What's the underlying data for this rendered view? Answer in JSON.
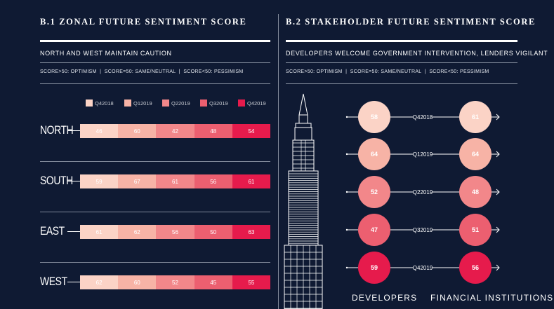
{
  "colors": {
    "background": "#0f1a33",
    "q4_2018": "#fbd3c6",
    "q1_2019": "#f7b3a6",
    "q2_2019": "#f2878a",
    "q3_2019": "#ec5f70",
    "q4_2019": "#e61b4c"
  },
  "left_panel": {
    "title": "B.1 ZONAL FUTURE SENTIMENT SCORE",
    "subtitle": "NORTH AND WEST MAINTAIN CAUTION",
    "score_legend": "SCORE>50: OPTIMISM  |  SCORE=50: SAME/NEUTRAL  |  SCORE<50: PESSIMISM"
  },
  "right_panel": {
    "title": "B.2 STAKEHOLDER FUTURE SENTIMENT SCORE",
    "subtitle": "DEVELOPERS WELCOME GOVERNMENT INTERVENTION, LENDERS VIGILANT",
    "score_legend": "SCORE>50: OPTIMISM  |  SCORE=50: SAME/NEUTRAL  |  SCORE<50: PESSIMISM"
  },
  "chart_data": [
    {
      "type": "bar",
      "stacked": true,
      "orientation": "horizontal",
      "title": "B.1 ZONAL FUTURE SENTIMENT SCORE",
      "subtitle": "NORTH AND WEST MAINTAIN CAUTION",
      "categories": [
        "NORTH",
        "SOUTH",
        "EAST",
        "WEST"
      ],
      "series": [
        {
          "name": "Q4 2018",
          "values": [
            46,
            59,
            61,
            62
          ]
        },
        {
          "name": "Q1 2019",
          "values": [
            60,
            67,
            62,
            60
          ]
        },
        {
          "name": "Q2 2019",
          "values": [
            42,
            61,
            56,
            52
          ]
        },
        {
          "name": "Q3 2019",
          "values": [
            48,
            56,
            50,
            45
          ]
        },
        {
          "name": "Q4 2019",
          "values": [
            54,
            61,
            63,
            55
          ]
        }
      ],
      "legend": "top"
    },
    {
      "type": "table",
      "title": "B.2 STAKEHOLDER FUTURE SENTIMENT SCORE",
      "subtitle": "DEVELOPERS WELCOME GOVERNMENT INTERVENTION, LENDERS VIGILANT",
      "periods": [
        "Q4 2018",
        "Q1 2019",
        "Q2 2019",
        "Q3 2019",
        "Q4 2019"
      ],
      "series": [
        {
          "name": "DEVELOPERS",
          "values": [
            58,
            64,
            52,
            47,
            59
          ]
        },
        {
          "name": "FINANCIAL INSTITUTIONS",
          "values": [
            61,
            64,
            48,
            51,
            56
          ]
        }
      ]
    }
  ]
}
